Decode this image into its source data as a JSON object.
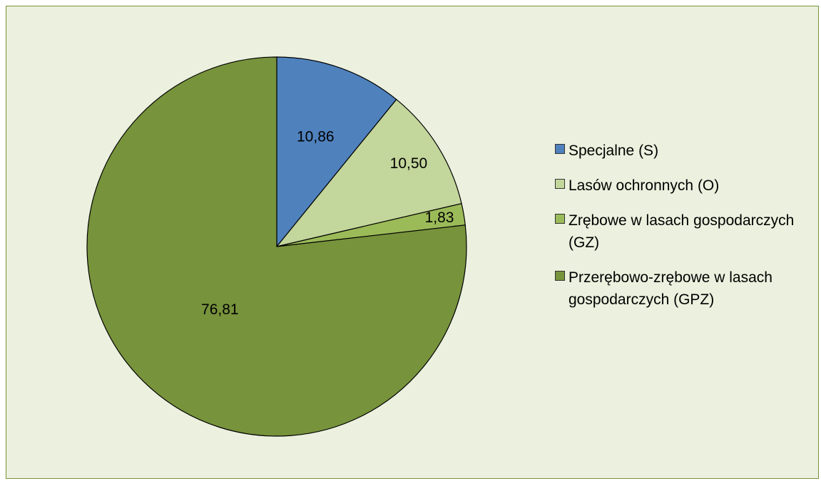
{
  "chart_data": {
    "type": "pie",
    "series": [
      {
        "name": "Specjalne (S)",
        "value": 10.86,
        "label": "10,86",
        "color": "#4f81bd"
      },
      {
        "name": "Lasów ochronnych (O)",
        "value": 10.5,
        "label": "10,50",
        "color": "#c3d69b"
      },
      {
        "name": "Zrębowe w lasach gospodarczych (GZ)",
        "value": 1.83,
        "label": "1,83",
        "color": "#9bbb59"
      },
      {
        "name": "Przerębowo-zrębowe w lasach gospodarczych (GPZ)",
        "value": 76.81,
        "label": "76,81",
        "color": "#77933c"
      }
    ],
    "legend_position": "right",
    "start_angle": "12 o'clock",
    "direction": "clockwise"
  },
  "frame": {
    "background": "#ebf1de",
    "border_color": "#77933c"
  }
}
